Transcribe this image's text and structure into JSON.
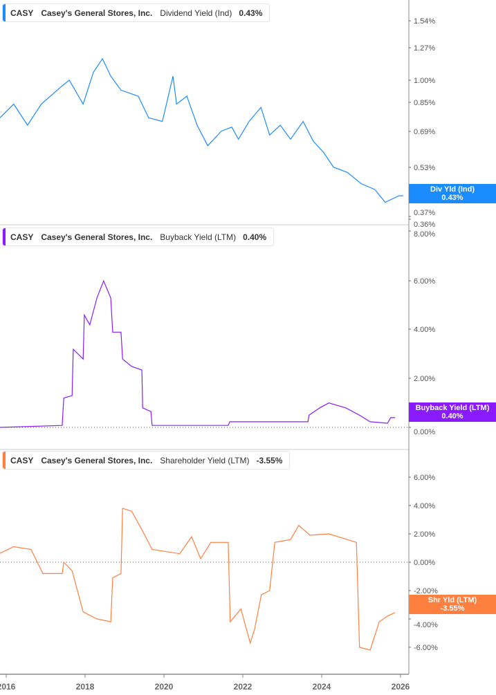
{
  "ticker": "CASY",
  "company": "Casey's General Stores, Inc.",
  "chart_data": [
    {
      "type": "line",
      "metric": "Dividend Yield (Ind)",
      "value": "0.43%",
      "flag_label": "Div Yld (Ind)",
      "color": "#1a8cff",
      "yscale": "log",
      "yticks": [
        "1.54%",
        "1.27%",
        "1.00%",
        "0.85%",
        "0.69%",
        "0.53%",
        "0.37%",
        "0.36%"
      ],
      "x": [
        2015.84,
        2016.19,
        2016.54,
        2016.89,
        2017.42,
        2017.6,
        2017.95,
        2018.21,
        2018.44,
        2018.65,
        2018.91,
        2019.35,
        2019.61,
        2019.96,
        2020.23,
        2020.32,
        2020.58,
        2020.84,
        2021.11,
        2021.46,
        2021.72,
        2021.89,
        2022.16,
        2022.46,
        2022.68,
        2022.95,
        2023.21,
        2023.53,
        2023.79,
        2024.05,
        2024.3,
        2024.65,
        2025.0,
        2025.35,
        2025.61,
        2025.96,
        2026.07
      ],
      "y": [
        0.76,
        0.84,
        0.72,
        0.84,
        0.96,
        1.0,
        0.84,
        1.06,
        1.17,
        1.03,
        0.93,
        0.89,
        0.76,
        0.74,
        1.03,
        0.84,
        0.89,
        0.72,
        0.62,
        0.69,
        0.71,
        0.65,
        0.74,
        0.82,
        0.67,
        0.72,
        0.65,
        0.74,
        0.64,
        0.59,
        0.53,
        0.51,
        0.47,
        0.45,
        0.41,
        0.43,
        0.43
      ]
    },
    {
      "type": "line",
      "metric": "Buyback Yield (LTM)",
      "value": "0.40%",
      "flag_label": "Buyback Yield (LTM)",
      "color": "#8a1aff",
      "ylim": [
        0,
        8
      ],
      "yticks": [
        "8.00%",
        "6.00%",
        "4.00%",
        "2.00%",
        "0.00%"
      ],
      "x": [
        2015.84,
        2017.42,
        2017.46,
        2017.67,
        2017.7,
        2017.95,
        2017.98,
        2018.12,
        2018.3,
        2018.47,
        2018.65,
        2018.7,
        2018.91,
        2018.95,
        2019.18,
        2019.44,
        2019.46,
        2019.67,
        2019.7,
        2021.63,
        2021.67,
        2023.65,
        2023.68,
        2023.95,
        2024.18,
        2024.61,
        2024.96,
        2025.23,
        2025.67,
        2025.75,
        2025.86
      ],
      "y": [
        0,
        0.08,
        1.2,
        1.3,
        3.2,
        2.8,
        4.6,
        4.2,
        5.3,
        6.0,
        5.3,
        3.9,
        3.9,
        2.8,
        2.5,
        2.35,
        0.8,
        0.65,
        0.08,
        0.08,
        0.23,
        0.23,
        0.5,
        0.8,
        1.0,
        0.8,
        0.5,
        0.23,
        0.17,
        0.4,
        0.4
      ]
    },
    {
      "type": "line",
      "metric": "Shareholder Yield (LTM)",
      "value": "-3.55%",
      "flag_label": "Shr Yld (LTM)",
      "color": "#ff7f3f",
      "ylim": [
        -7,
        7
      ],
      "yticks": [
        "6.00%",
        "4.00%",
        "2.00%",
        "0.00%",
        "-2.00%",
        "-4.00%",
        "-6.00%"
      ],
      "x": [
        2015.84,
        2016.19,
        2016.63,
        2016.93,
        2017.42,
        2017.46,
        2017.67,
        2017.95,
        2018.3,
        2018.65,
        2018.7,
        2018.91,
        2018.95,
        2019.18,
        2019.44,
        2019.7,
        2020.4,
        2020.7,
        2020.93,
        2021.19,
        2021.63,
        2021.68,
        2021.95,
        2022.19,
        2022.3,
        2022.47,
        2022.68,
        2022.81,
        2023.21,
        2023.42,
        2023.7,
        2024.18,
        2024.88,
        2024.96,
        2025.23,
        2025.46,
        2025.67,
        2025.86
      ],
      "y": [
        0.63,
        1.1,
        0.9,
        -0.8,
        -0.8,
        0,
        -0.6,
        -3.5,
        -4.0,
        -4.2,
        -1.1,
        -0.8,
        3.8,
        3.6,
        2.3,
        0.9,
        0.6,
        1.8,
        0.25,
        1.4,
        1.4,
        -4.2,
        -3.3,
        -5.7,
        -4.7,
        -2.3,
        -2.0,
        1.4,
        1.6,
        2.6,
        1.9,
        2.0,
        1.4,
        -6.0,
        -6.2,
        -4.2,
        -3.8,
        -3.55
      ]
    }
  ],
  "xticks": [
    "2016",
    "2018",
    "2020",
    "2022",
    "2024",
    "2026"
  ]
}
